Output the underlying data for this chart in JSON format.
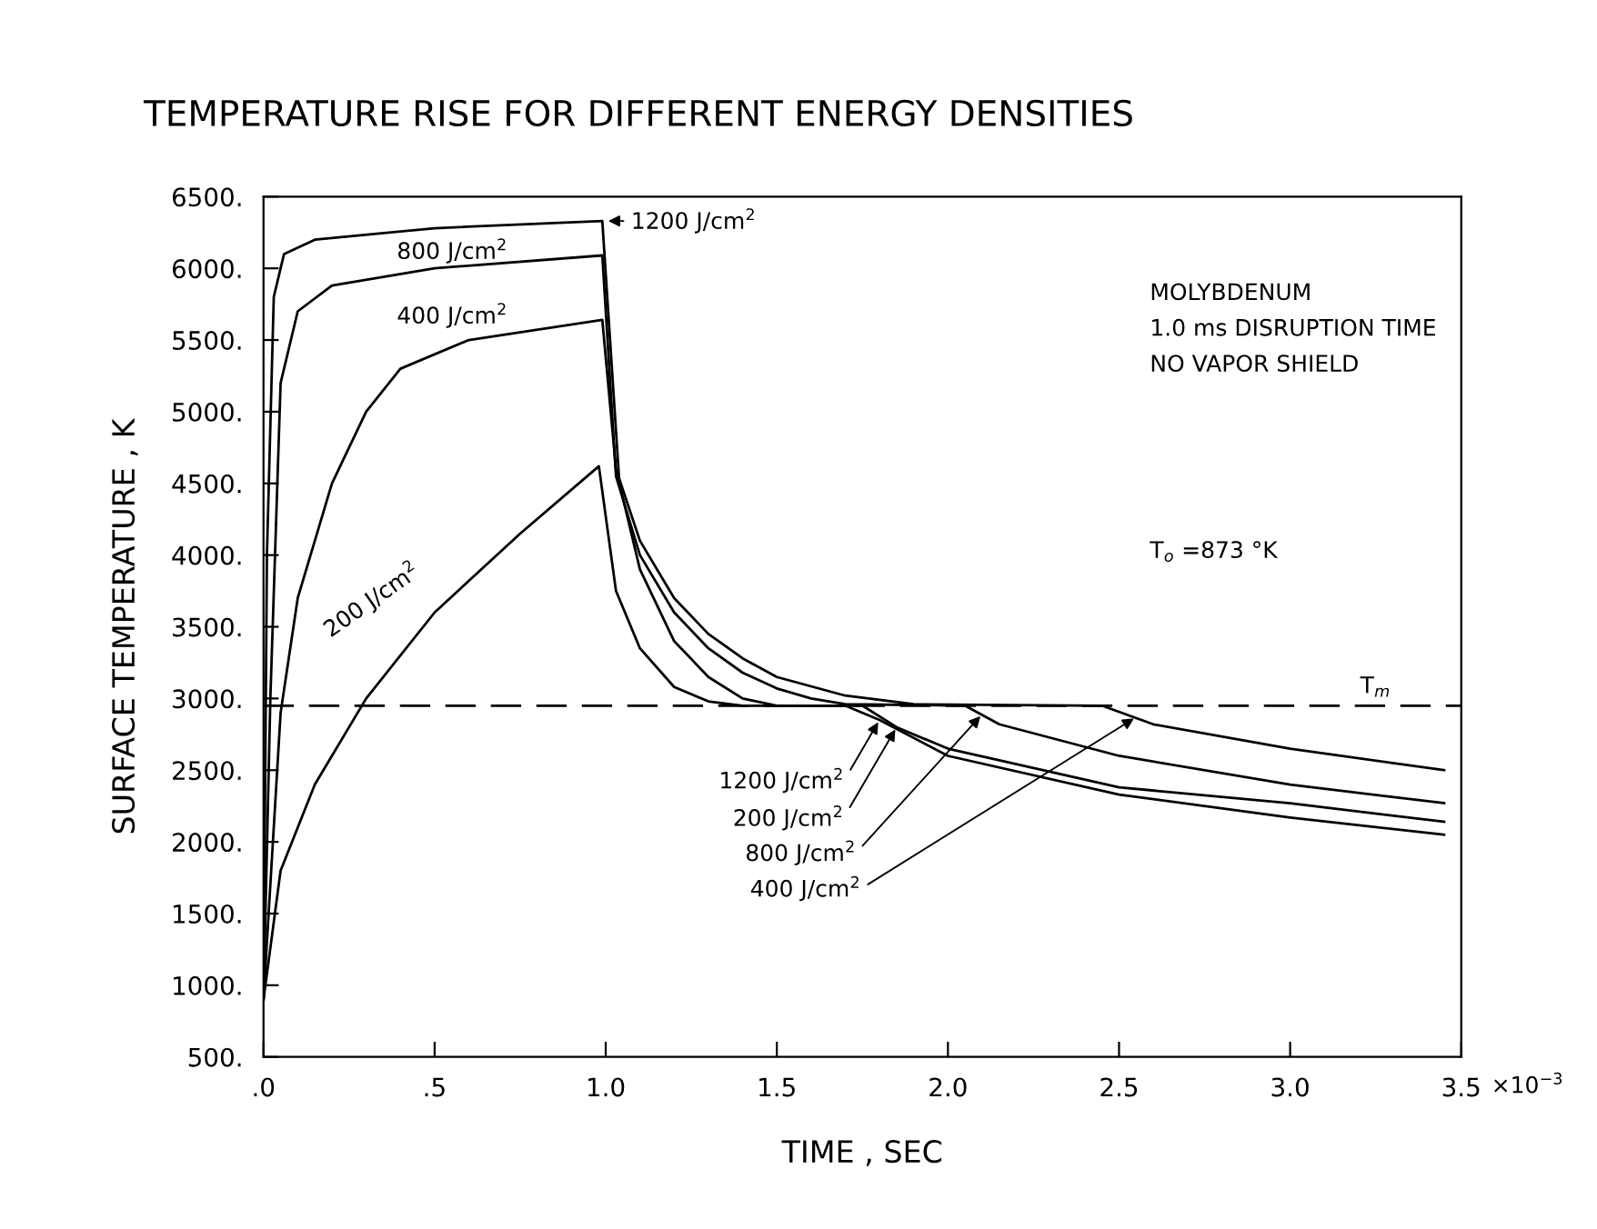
{
  "chart_data": {
    "type": "line",
    "title": "TEMPERATURE RISE FOR DIFFERENT ENERGY DENSITIES",
    "xlabel": "TIME , SEC",
    "ylabel": "SURFACE TEMPERATURE , K",
    "xlim": [
      0,
      3.5
    ],
    "ylim": [
      500,
      6500
    ],
    "xticks": [
      {
        "value": 0,
        "label": ".0"
      },
      {
        "value": 0.5,
        "label": ".5"
      },
      {
        "value": 1.0,
        "label": "1.0"
      },
      {
        "value": 1.5,
        "label": "1.5"
      },
      {
        "value": 2.0,
        "label": "2.0"
      },
      {
        "value": 2.5,
        "label": "2.5"
      },
      {
        "value": 3.0,
        "label": "3.0"
      },
      {
        "value": 3.5,
        "label": "3.5"
      }
    ],
    "yticks": [
      {
        "value": 500,
        "label": "500."
      },
      {
        "value": 1000,
        "label": "1000."
      },
      {
        "value": 1500,
        "label": "1500."
      },
      {
        "value": 2000,
        "label": "2000."
      },
      {
        "value": 2500,
        "label": "2500."
      },
      {
        "value": 3000,
        "label": "3000."
      },
      {
        "value": 3500,
        "label": "3500."
      },
      {
        "value": 4000,
        "label": "4000."
      },
      {
        "value": 4500,
        "label": "4500."
      },
      {
        "value": 5000,
        "label": "5000."
      },
      {
        "value": 5500,
        "label": "5500."
      },
      {
        "value": 6000,
        "label": "6000."
      },
      {
        "value": 6500,
        "label": "6500."
      }
    ],
    "grid": false,
    "legend": false,
    "marker": "none",
    "line_style": "solid",
    "series": [
      {
        "color": "#000000",
        "x": [
          0,
          0.01,
          0.03,
          0.06,
          0.15,
          0.5,
          0.99,
          1.04,
          1.1,
          1.2,
          1.3,
          1.4,
          1.5,
          1.7,
          1.8,
          2.0,
          2.5,
          3.0,
          3.45
        ],
        "values": [
          900,
          4000,
          5800,
          6100,
          6200,
          6280,
          6330,
          4500,
          3900,
          3400,
          3150,
          3000,
          2950,
          2950,
          2850,
          2600,
          2330,
          2170,
          2050
        ]
      },
      {
        "color": "#000000",
        "x": [
          0,
          0.02,
          0.05,
          0.1,
          0.2,
          0.5,
          0.99,
          1.03,
          1.1,
          1.2,
          1.3,
          1.4,
          1.5,
          1.6,
          1.7,
          2.05,
          2.15,
          2.5,
          3.0,
          3.45
        ],
        "values": [
          900,
          3000,
          5200,
          5700,
          5880,
          6000,
          6090,
          4550,
          4000,
          3600,
          3350,
          3180,
          3070,
          3000,
          2960,
          2950,
          2820,
          2600,
          2400,
          2270
        ]
      },
      {
        "color": "#000000",
        "x": [
          0,
          0.05,
          0.1,
          0.2,
          0.3,
          0.4,
          0.6,
          0.99,
          1.03,
          1.1,
          1.2,
          1.3,
          1.4,
          1.5,
          1.7,
          1.9,
          2.45,
          2.6,
          3.0,
          3.45
        ],
        "values": [
          900,
          2900,
          3700,
          4500,
          5000,
          5300,
          5500,
          5640,
          4600,
          4100,
          3700,
          3450,
          3280,
          3150,
          3020,
          2960,
          2950,
          2820,
          2650,
          2500
        ]
      },
      {
        "color": "#000000",
        "x": [
          0,
          0.05,
          0.15,
          0.3,
          0.5,
          0.75,
          0.98,
          1.03,
          1.1,
          1.2,
          1.3,
          1.4,
          1.75,
          1.85,
          2.0,
          2.5,
          3.0,
          3.45
        ],
        "values": [
          900,
          1800,
          2400,
          3000,
          3600,
          4150,
          4620,
          3750,
          3350,
          3080,
          2980,
          2950,
          2950,
          2800,
          2650,
          2380,
          2270,
          2140
        ]
      }
    ],
    "ref_lines": [
      {
        "axis": "y",
        "value": 2950,
        "label": "T$_{m}$",
        "color": "#000000",
        "line_style": "dashed"
      }
    ],
    "annotations": [
      {
        "text": "1200 J/cm$^{2}$",
        "x": 1.0,
        "y": 6330
      },
      {
        "text": "800 J/cm$^{2}$",
        "x": 0.75,
        "y": 6050
      },
      {
        "text": "400 J/cm$^{2}$",
        "x": 0.75,
        "y": 5600
      },
      {
        "text": "200 J/cm$^{2}$",
        "x": 0.5,
        "y": 3600
      },
      {
        "text": "1200 J/cm$^{2}$",
        "x": 1.8,
        "y": 2850
      },
      {
        "text": "200 J/cm$^{2}$",
        "x": 1.85,
        "y": 2800
      },
      {
        "text": "800 J/cm$^{2}$",
        "x": 2.1,
        "y": 2890
      },
      {
        "text": "400 J/cm$^{2}$",
        "x": 2.55,
        "y": 2870
      },
      "MOLYBDENUM\n1.0 ms DISRUPTION TIME\nNO VAPOR SHIELD",
      "T$_{o}$ =873 °K",
      "×10$^{−3}$"
    ]
  }
}
